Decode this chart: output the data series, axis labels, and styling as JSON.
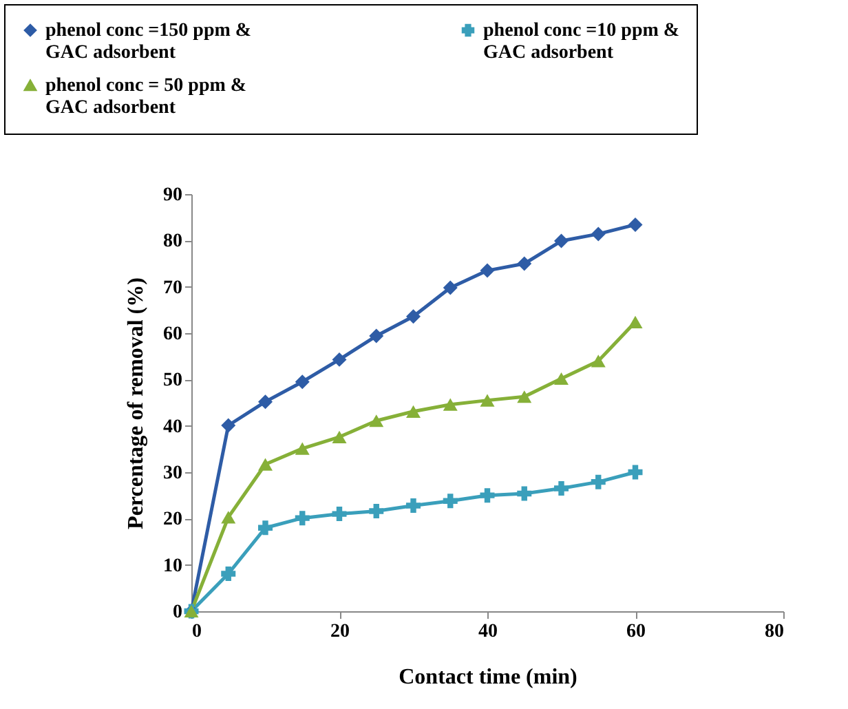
{
  "chart_data": {
    "type": "line",
    "xlabel": "Contact time (min)",
    "ylabel": "Percentage of removal (%)",
    "x": [
      0,
      5,
      10,
      15,
      20,
      25,
      30,
      35,
      40,
      45,
      50,
      55,
      60
    ],
    "xlim": [
      0,
      80
    ],
    "xticks": [
      0,
      20,
      40,
      60,
      80
    ],
    "ylim": [
      0,
      90
    ],
    "yticks": [
      0,
      10,
      20,
      30,
      40,
      50,
      60,
      70,
      80,
      90
    ],
    "grid": false,
    "legend": "top",
    "series": [
      {
        "name": "phenol conc =150 ppm & GAC adsorbent",
        "color": "#2e5ca6",
        "marker": "diamond",
        "values": [
          0,
          40.1,
          45.2,
          49.5,
          54.3,
          59.4,
          63.6,
          69.8,
          73.5,
          75,
          79.9,
          81.4,
          83.4
        ]
      },
      {
        "name": "phenol conc =10 ppm & GAC adsorbent",
        "color": "#3a9fbb",
        "marker": "cross",
        "values": [
          0,
          8.1,
          18,
          20.1,
          21,
          21.6,
          22.8,
          23.8,
          25,
          25.4,
          26.5,
          27.9,
          30
        ]
      },
      {
        "name": "phenol conc = 50 ppm & GAC adsorbent",
        "color": "#86b038",
        "marker": "triangle",
        "values": [
          0,
          20.3,
          31.7,
          35.1,
          37.6,
          41.1,
          43.1,
          44.6,
          45.5,
          46.3,
          50.2,
          54,
          62.4
        ]
      }
    ]
  }
}
